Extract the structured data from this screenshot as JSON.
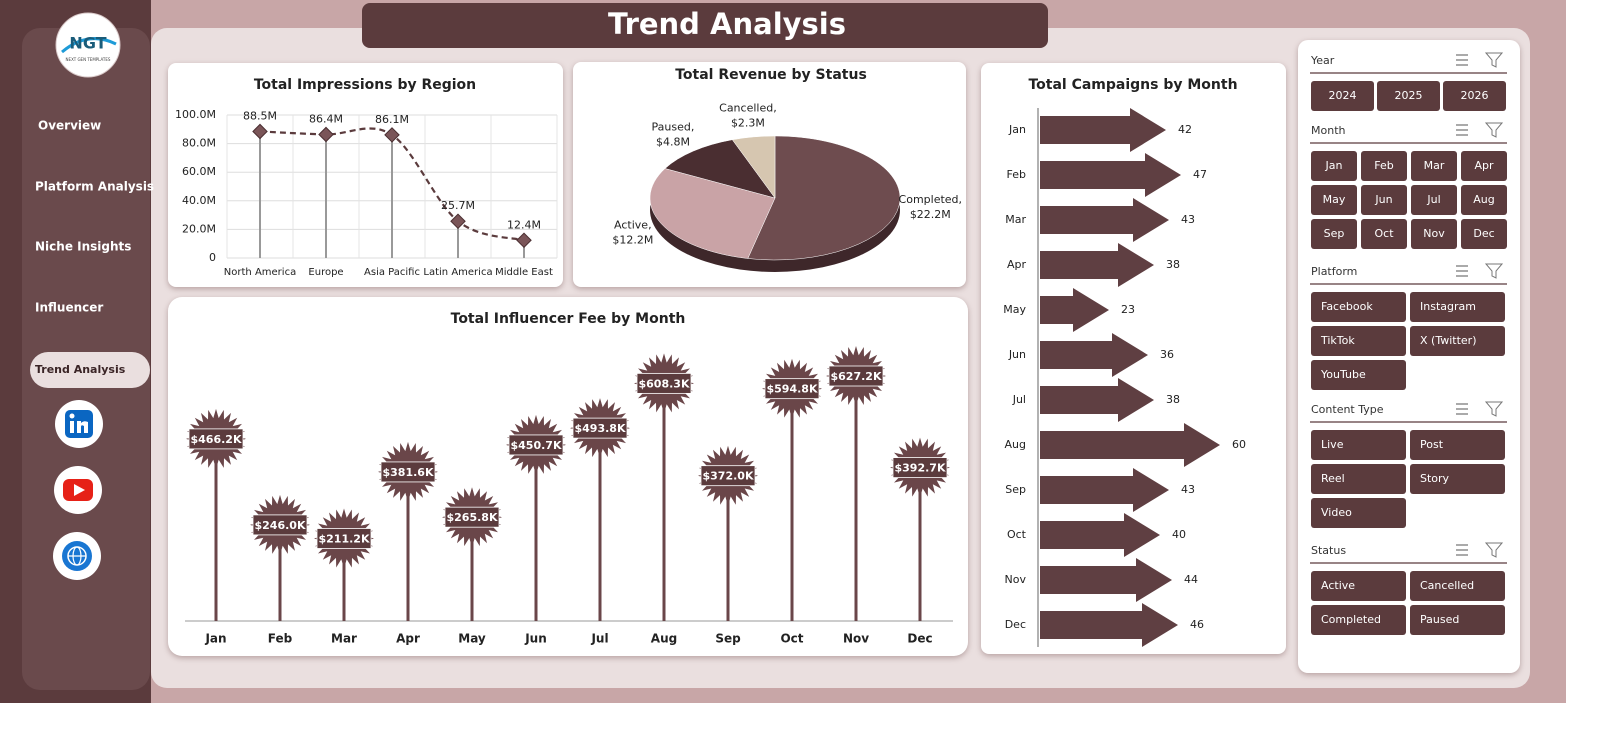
{
  "header": {
    "title": "Trend Analysis"
  },
  "sidebar": {
    "logo": "NGT",
    "logo_subtitle": "NEXT GEN TEMPLATES",
    "nav": [
      "Overview",
      "Platform Analysis",
      "Niche Insights",
      "Influencer",
      "Trend Analysis"
    ]
  },
  "slicers": [
    {
      "title": "Year",
      "items": [
        "2024",
        "2025",
        "2026"
      ]
    },
    {
      "title": "Month",
      "items": [
        "Jan",
        "Feb",
        "Mar",
        "Apr",
        "May",
        "Jun",
        "Jul",
        "Aug",
        "Sep",
        "Oct",
        "Nov",
        "Dec"
      ]
    },
    {
      "title": "Platform",
      "items": [
        "Facebook",
        "Instagram",
        "TikTok",
        "X (Twitter)",
        "YouTube"
      ]
    },
    {
      "title": "Content Type",
      "items": [
        "Live",
        "Post",
        "Reel",
        "Story",
        "Video"
      ]
    },
    {
      "title": "Status",
      "items": [
        "Active",
        "Cancelled",
        "Completed",
        "Paused"
      ]
    }
  ],
  "chart_data": [
    {
      "type": "line",
      "title": "Total Impressions by Region",
      "categories": [
        "North America",
        "Europe",
        "Asia Pacific",
        "Latin America",
        "Middle East"
      ],
      "values": [
        88.5,
        86.4,
        86.1,
        25.7,
        12.4
      ],
      "value_labels": [
        "88.5M",
        "86.4M",
        "86.1M",
        "25.7M",
        "12.4M"
      ],
      "ylim": [
        0,
        100
      ],
      "yticks": [
        0,
        {
          "value": 20,
          "label": "20.0M"
        },
        {
          "value": 40,
          "label": "40.0M"
        },
        {
          "value": 60,
          "label": "60.0M"
        },
        {
          "value": 80,
          "label": "80.0M"
        },
        {
          "value": 100,
          "label": "100.0M"
        }
      ],
      "grid": true,
      "color": "#5b3b3d"
    },
    {
      "type": "pie",
      "title": "Total Revenue by Status",
      "categories": [
        "Completed",
        "Active",
        "Paused",
        "Cancelled"
      ],
      "values": [
        22.2,
        12.2,
        4.8,
        2.3
      ],
      "value_labels": [
        "$22.2M",
        "$12.2M",
        "$4.8M",
        "$2.3M"
      ],
      "label_separator": ",",
      "colors": [
        "#6e4c4f",
        "#c9a3a6",
        "#4a2e31",
        "#d6c6b0"
      ]
    },
    {
      "type": "bar",
      "orientation": "horizontal",
      "title": "Total Campaigns by Month",
      "categories": [
        "Jan",
        "Feb",
        "Mar",
        "Apr",
        "May",
        "Jun",
        "Jul",
        "Aug",
        "Sep",
        "Oct",
        "Nov",
        "Dec"
      ],
      "values": [
        42,
        47,
        43,
        38,
        23,
        36,
        38,
        60,
        43,
        40,
        44,
        46
      ],
      "color": "#5f3f42"
    },
    {
      "type": "lollipop",
      "title": "Total Influencer  Fee by Month",
      "categories": [
        "Jan",
        "Feb",
        "Mar",
        "Apr",
        "May",
        "Jun",
        "Jul",
        "Aug",
        "Sep",
        "Oct",
        "Nov",
        "Dec"
      ],
      "values": [
        466.2,
        246.0,
        211.2,
        381.6,
        265.8,
        450.7,
        493.8,
        608.3,
        372.0,
        594.8,
        627.2,
        392.7
      ],
      "value_labels": [
        "$466.2K",
        "$246.0K",
        "$211.2K",
        "$381.6K",
        "$265.8K",
        "$450.7K",
        "$493.8K",
        "$608.3K",
        "$372.0K",
        "$594.8K",
        "$627.2K",
        "$392.7K"
      ],
      "color": "#6a4649"
    }
  ]
}
